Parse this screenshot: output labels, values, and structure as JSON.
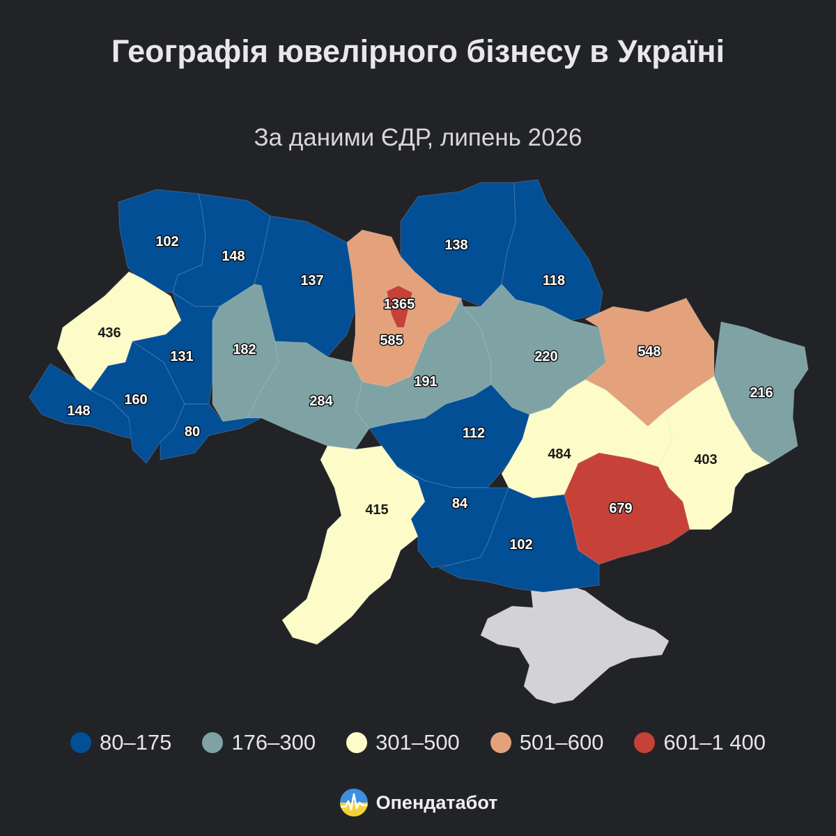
{
  "header": {
    "title": "Географія ювелірного бізнесу в Україні",
    "subtitle": "За даними ЄДР, липень 2026"
  },
  "colors": {
    "bin1": "#034f96",
    "bin2": "#7fa3a4",
    "bin3": "#fdfbc7",
    "bin4": "#e3a27c",
    "bin5": "#c64239",
    "no_data": "#d3d3d5",
    "background": "#222327"
  },
  "regions": [
    {
      "id": "volyn",
      "value": 102
    },
    {
      "id": "rivne",
      "value": 148
    },
    {
      "id": "zhytomyr",
      "value": 137
    },
    {
      "id": "kyiv-oblast",
      "value": 585
    },
    {
      "id": "kyiv-city",
      "value": 1365
    },
    {
      "id": "chernihiv",
      "value": 138
    },
    {
      "id": "sumy",
      "value": 118
    },
    {
      "id": "lviv",
      "value": 436
    },
    {
      "id": "ternopil",
      "value": 131
    },
    {
      "id": "khmelnytskyi",
      "value": 182
    },
    {
      "id": "vinnytsia",
      "value": 284
    },
    {
      "id": "cherkasy",
      "value": 191
    },
    {
      "id": "poltava",
      "value": 220
    },
    {
      "id": "kharkiv",
      "value": 548
    },
    {
      "id": "luhansk",
      "value": 216
    },
    {
      "id": "zakarpattia",
      "value": 148
    },
    {
      "id": "ivano-frankivsk",
      "value": 160
    },
    {
      "id": "chernivtsi",
      "value": 80
    },
    {
      "id": "kirovohrad",
      "value": 112
    },
    {
      "id": "dnipropetrovsk",
      "value": 484
    },
    {
      "id": "donetsk",
      "value": 403
    },
    {
      "id": "odesa",
      "value": 415
    },
    {
      "id": "mykolaiv",
      "value": 84
    },
    {
      "id": "zaporizhzhia",
      "value": 679
    },
    {
      "id": "kherson",
      "value": 102
    }
  ],
  "legend": [
    {
      "label": "80–175",
      "color": "#034f96"
    },
    {
      "label": "176–300",
      "color": "#7fa3a4"
    },
    {
      "label": "301–500",
      "color": "#fdfbc7"
    },
    {
      "label": "501–600",
      "color": "#e3a27c"
    },
    {
      "label": "601–1 400",
      "color": "#c64239"
    }
  ],
  "brand": {
    "name": "Опендатабот",
    "logo_icon": "opendatabot-logo-icon"
  }
}
